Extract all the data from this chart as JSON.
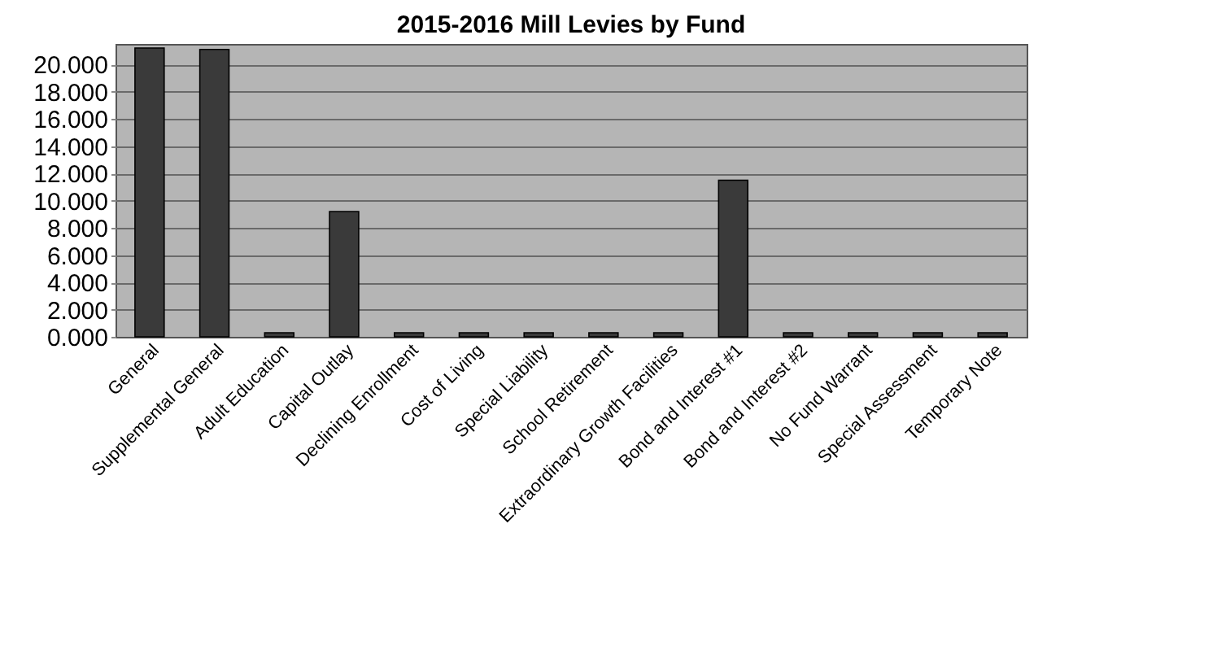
{
  "chart_data": {
    "type": "bar",
    "title": "2015-2016  Mill Levies by Fund",
    "categories": [
      "General",
      "Supplemental General",
      "Adult Education",
      "Capital Outlay",
      "Declining Enrollment",
      "Cost of Living",
      "Special Liability",
      "School Retirement",
      "Extraordinary Growth Facilities",
      "Bond and Interest #1",
      "Bond and Interest #2",
      "No Fund Warrant",
      "Special Assessment",
      "Temporary Note"
    ],
    "values": [
      21.2,
      21.1,
      0.3,
      9.2,
      0.3,
      0.3,
      0.3,
      0.3,
      0.3,
      11.5,
      0.3,
      0.3,
      0.3,
      0.3
    ],
    "color": "#3a3a3a",
    "ylim": [
      0,
      21.5
    ],
    "yticks": [
      {
        "value": 0,
        "label": "0.000"
      },
      {
        "value": 2,
        "label": "2.000"
      },
      {
        "value": 4,
        "label": "4.000"
      },
      {
        "value": 6,
        "label": "6.000"
      },
      {
        "value": 8,
        "label": "8.000"
      },
      {
        "value": 10,
        "label": "10.000"
      },
      {
        "value": 12,
        "label": "12.000"
      },
      {
        "value": 14,
        "label": "14.000"
      },
      {
        "value": 16,
        "label": "16.000"
      },
      {
        "value": 18,
        "label": "18.000"
      },
      {
        "value": 20,
        "label": "20.000"
      }
    ],
    "grid": "y"
  }
}
